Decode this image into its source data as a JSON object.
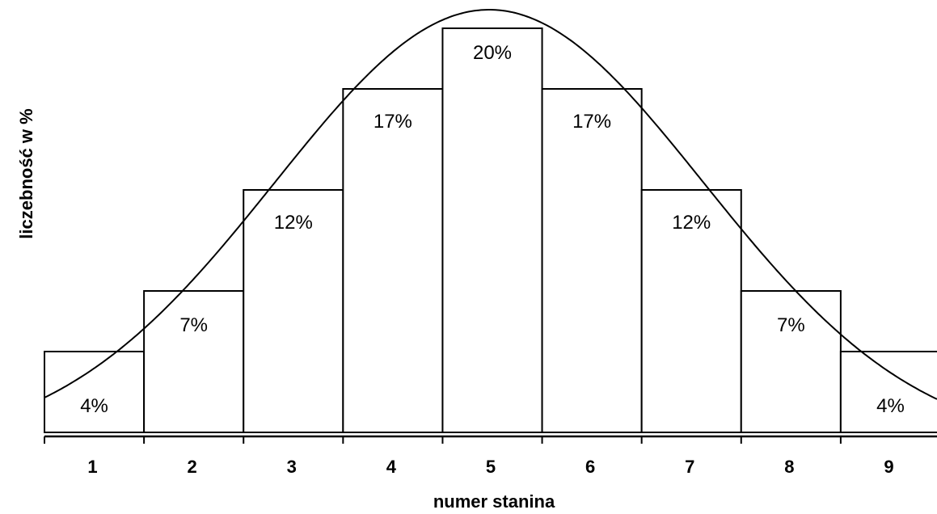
{
  "chart_data": {
    "type": "bar",
    "categories": [
      "1",
      "2",
      "3",
      "4",
      "5",
      "6",
      "7",
      "8",
      "9"
    ],
    "values": [
      4,
      7,
      12,
      17,
      20,
      17,
      12,
      7,
      4
    ],
    "data_labels": [
      "4%",
      "7%",
      "12%",
      "17%",
      "20%",
      "17%",
      "12%",
      "7%",
      "4%"
    ],
    "title": "",
    "xlabel": "numer stanina",
    "ylabel": "liczebność w %",
    "ylim": [
      0,
      21
    ],
    "grid": false,
    "overlay_curve": "normal-distribution",
    "colors": {
      "bar_fill": "#ffffff",
      "bar_stroke": "#000000",
      "curve": "#000000"
    }
  }
}
